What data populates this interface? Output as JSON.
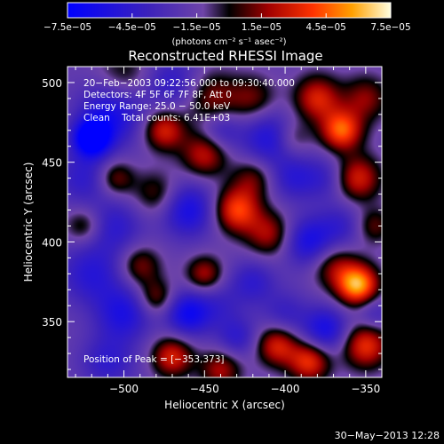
{
  "chart_data": {
    "type": "heatmap",
    "title": "Reconstructed RHESSI Image",
    "xlabel": "Heliocentric X (arcsec)",
    "ylabel": "Heliocentric Y (arcsec)",
    "xlim": [
      -535,
      -340
    ],
    "ylim": [
      315,
      510
    ],
    "x_ticks": [
      -500,
      -450,
      -400,
      -350
    ],
    "x_tick_labels": [
      "−500",
      "−450",
      "−400",
      "−350"
    ],
    "y_ticks": [
      350,
      400,
      450,
      500
    ],
    "y_tick_labels": [
      "350",
      "400",
      "450",
      "500"
    ],
    "colorbar": {
      "range": [
        -7.5e-05,
        7.5e-05
      ],
      "tick_labels": [
        "−7.5e−05",
        "−4.5e−05",
        "−1.5e−05",
        "1.5e−05",
        "4.5e−05",
        "7.5e−05"
      ],
      "tick_values": [
        -7.5e-05,
        -4.5e-05,
        -1.5e-05,
        1.5e-05,
        4.5e-05,
        7.5e-05
      ],
      "units_label": "(photons cm⁻² s⁻¹ asec⁻²)"
    },
    "annotations": {
      "time_range": "20−Feb−2003 09:22:56.000 to 09:30:40.000",
      "detectors": "Detectors: 4F 5F 6F 7F 8F, Att 0",
      "energy_range": "Energy Range: 25.0 − 50.0 keV",
      "clean_counts": "Clean    Total counts: 6.41E+03",
      "peak": "Position of Peak = [−353,373]"
    },
    "blobs": [
      {
        "x": -520,
        "y": 465,
        "v": -7.5e-05,
        "s": 8
      },
      {
        "x": -508,
        "y": 480,
        "v": -4.5e-05,
        "s": 14
      },
      {
        "x": -525,
        "y": 440,
        "v": -3e-05,
        "s": 12
      },
      {
        "x": -500,
        "y": 505,
        "v": 2e-05,
        "s": 12
      },
      {
        "x": -470,
        "y": 500,
        "v": -3e-05,
        "s": 12
      },
      {
        "x": -475,
        "y": 470,
        "v": 4.5e-05,
        "s": 9
      },
      {
        "x": -445,
        "y": 490,
        "v": 3e-05,
        "s": 12
      },
      {
        "x": -450,
        "y": 455,
        "v": 4e-05,
        "s": 10
      },
      {
        "x": -440,
        "y": 470,
        "v": -3e-05,
        "s": 9
      },
      {
        "x": -420,
        "y": 490,
        "v": 2.5e-05,
        "s": 10
      },
      {
        "x": -410,
        "y": 465,
        "v": -4e-05,
        "s": 12
      },
      {
        "x": -395,
        "y": 440,
        "v": -3e-05,
        "s": 10
      },
      {
        "x": -380,
        "y": 490,
        "v": 4.5e-05,
        "s": 10
      },
      {
        "x": -365,
        "y": 470,
        "v": 6e-05,
        "s": 9
      },
      {
        "x": -350,
        "y": 490,
        "v": 3e-05,
        "s": 10
      },
      {
        "x": -355,
        "y": 440,
        "v": 4.5e-05,
        "s": 10
      },
      {
        "x": -375,
        "y": 440,
        "v": -2.5e-05,
        "s": 10
      },
      {
        "x": -505,
        "y": 440,
        "v": 3e-05,
        "s": 8
      },
      {
        "x": -480,
        "y": 430,
        "v": 2.5e-05,
        "s": 10
      },
      {
        "x": -525,
        "y": 410,
        "v": 2.5e-05,
        "s": 8
      },
      {
        "x": -505,
        "y": 410,
        "v": -3e-05,
        "s": 12
      },
      {
        "x": -490,
        "y": 385,
        "v": 3e-05,
        "s": 9
      },
      {
        "x": -460,
        "y": 420,
        "v": -4.5e-05,
        "s": 12
      },
      {
        "x": -430,
        "y": 420,
        "v": 5.5e-05,
        "s": 10
      },
      {
        "x": -410,
        "y": 405,
        "v": 3.5e-05,
        "s": 10
      },
      {
        "x": -420,
        "y": 440,
        "v": 2.5e-05,
        "s": 9
      },
      {
        "x": -385,
        "y": 400,
        "v": -4.5e-05,
        "s": 11
      },
      {
        "x": -365,
        "y": 410,
        "v": -2.5e-05,
        "s": 10
      },
      {
        "x": -345,
        "y": 410,
        "v": 2.5e-05,
        "s": 8
      },
      {
        "x": -355,
        "y": 373,
        "v": 7.5e-05,
        "s": 9
      },
      {
        "x": -370,
        "y": 385,
        "v": 3e-05,
        "s": 10
      },
      {
        "x": -520,
        "y": 380,
        "v": -3.5e-05,
        "s": 14
      },
      {
        "x": -500,
        "y": 355,
        "v": -4e-05,
        "s": 12
      },
      {
        "x": -480,
        "y": 365,
        "v": 3e-05,
        "s": 8
      },
      {
        "x": -460,
        "y": 355,
        "v": -5e-05,
        "s": 10
      },
      {
        "x": -450,
        "y": 380,
        "v": 3.5e-05,
        "s": 8
      },
      {
        "x": -440,
        "y": 360,
        "v": -2e-05,
        "s": 10
      },
      {
        "x": -420,
        "y": 375,
        "v": -3e-05,
        "s": 10
      },
      {
        "x": -400,
        "y": 355,
        "v": -2.5e-05,
        "s": 10
      },
      {
        "x": -405,
        "y": 335,
        "v": 4.5e-05,
        "s": 9
      },
      {
        "x": -375,
        "y": 345,
        "v": -4.5e-05,
        "s": 10
      },
      {
        "x": -385,
        "y": 325,
        "v": 5e-05,
        "s": 9
      },
      {
        "x": -350,
        "y": 335,
        "v": 5e-05,
        "s": 10
      },
      {
        "x": -345,
        "y": 355,
        "v": -2.5e-05,
        "s": 8
      },
      {
        "x": -470,
        "y": 328,
        "v": 4.5e-05,
        "s": 9
      },
      {
        "x": -440,
        "y": 320,
        "v": 3.5e-05,
        "s": 9
      },
      {
        "x": -510,
        "y": 325,
        "v": -3e-05,
        "s": 12
      },
      {
        "x": -430,
        "y": 340,
        "v": -3e-05,
        "s": 9
      },
      {
        "x": -395,
        "y": 465,
        "v": 2e-05,
        "s": 8
      }
    ],
    "grid": false
  },
  "footer": {
    "date": "30−May−2013 12:28"
  }
}
